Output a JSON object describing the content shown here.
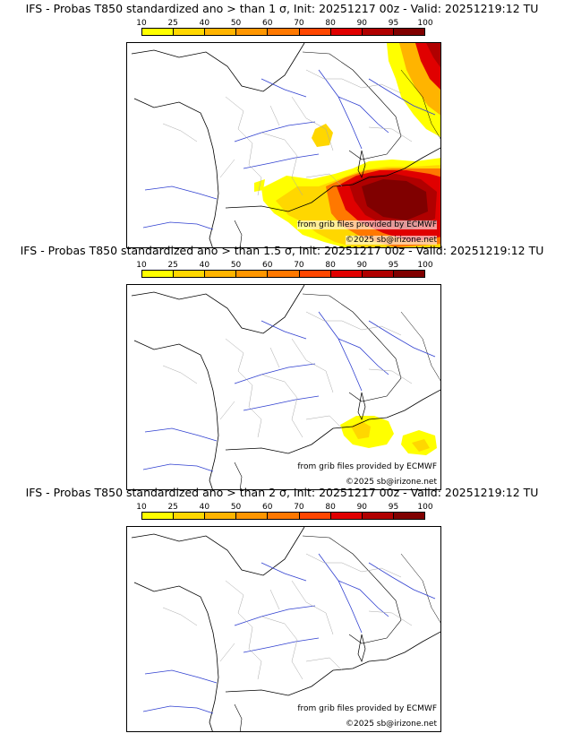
{
  "legend": {
    "ticks": [
      "10",
      "25",
      "40",
      "50",
      "60",
      "70",
      "80",
      "90",
      "95",
      "100"
    ],
    "colors": [
      "#ffff00",
      "#ffd700",
      "#ffb400",
      "#ff9600",
      "#ff7800",
      "#ff4600",
      "#e00000",
      "#b00000",
      "#800000"
    ]
  },
  "panels": [
    {
      "title": "IFS - Probas T850  standardized ano > than 1 σ, Init: 20251217 00z - Valid: 20251219:12 TU",
      "credit_source": "from grib files provided by ECMWF",
      "credit_copyright": "©2025 sb@irizone.net"
    },
    {
      "title": "IFS - Probas T850  standardized ano > than 1.5 σ, Init: 20251217 00z - Valid: 20251219:12 TU",
      "credit_source": "from grib files provided by ECMWF",
      "credit_copyright": "©2025 sb@irizone.net"
    },
    {
      "title": "IFS - Probas T850  standardized ano > than 2 σ, Init: 20251217 00z - Valid: 20251219:12 TU",
      "credit_source": "from grib files provided by ECMWF",
      "credit_copyright": "©2025 sb@irizone.net"
    }
  ]
}
